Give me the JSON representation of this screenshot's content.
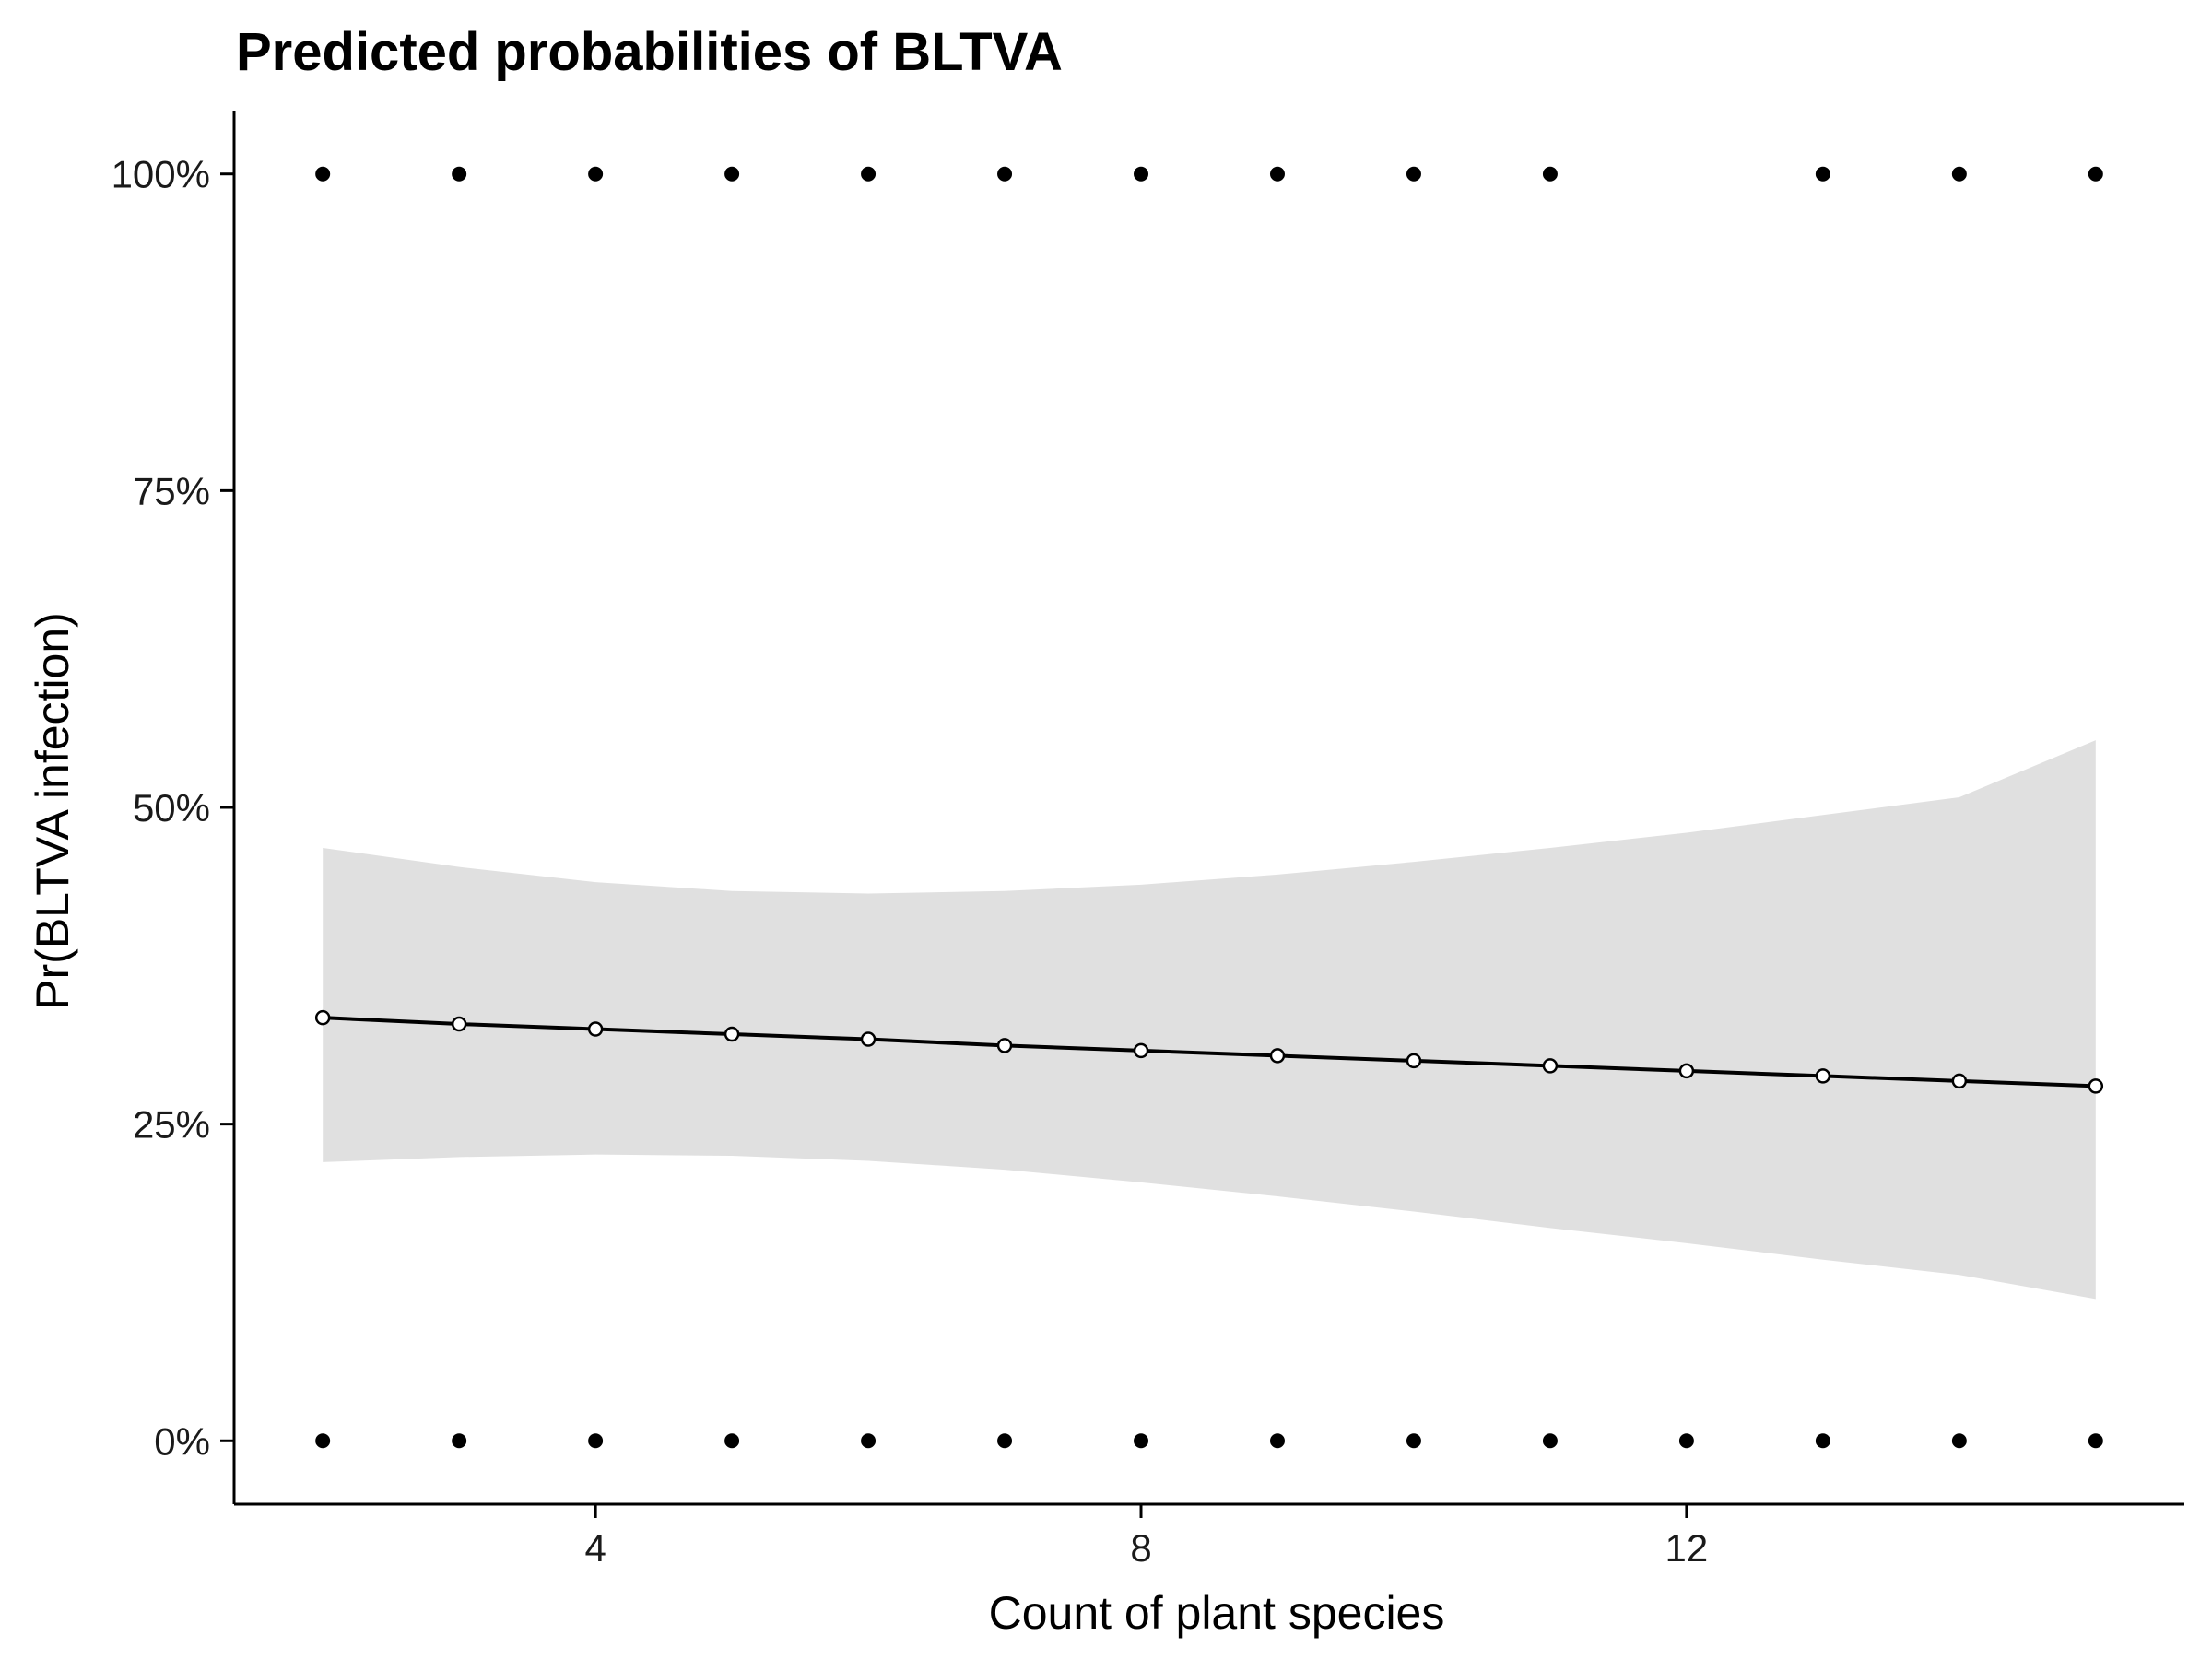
{
  "chart_data": {
    "type": "line",
    "title": "Predicted probabilities of BLTVA",
    "xlabel": "Count of plant species",
    "ylabel": "Pr(BLTVA infection)",
    "xlim": [
      1.35,
      15.65
    ],
    "ylim": [
      -0.05,
      1.05
    ],
    "x_ticks": [
      4,
      8,
      12
    ],
    "x_tick_labels": [
      "4",
      "8",
      "12"
    ],
    "y_ticks": [
      0,
      0.25,
      0.5,
      0.75,
      1.0
    ],
    "y_tick_labels": [
      "0%",
      "25%",
      "50%",
      "75%",
      "100%"
    ],
    "grid": false,
    "legend": "none",
    "fit": {
      "x": [
        2,
        3,
        4,
        5,
        6,
        7,
        8,
        9,
        10,
        11,
        12,
        13,
        14,
        15
      ],
      "y": [
        0.334,
        0.329,
        0.325,
        0.321,
        0.317,
        0.312,
        0.308,
        0.304,
        0.3,
        0.296,
        0.292,
        0.288,
        0.284,
        0.28
      ],
      "ci_lower": [
        0.22,
        0.224,
        0.226,
        0.225,
        0.221,
        0.214,
        0.204,
        0.193,
        0.181,
        0.168,
        0.156,
        0.143,
        0.131,
        0.112
      ],
      "ci_upper": [
        0.468,
        0.453,
        0.441,
        0.434,
        0.432,
        0.434,
        0.439,
        0.447,
        0.457,
        0.468,
        0.48,
        0.494,
        0.508,
        0.553
      ]
    },
    "observed": {
      "infected_x": [
        2,
        3,
        4,
        5,
        6,
        7,
        8,
        9,
        10,
        11,
        13,
        14,
        15
      ],
      "infected_y": 1,
      "not_infected_x": [
        2,
        3,
        4,
        5,
        6,
        7,
        8,
        9,
        10,
        11,
        12,
        13,
        14,
        15
      ],
      "not_infected_y": 0
    },
    "colors": {
      "band": "#e0e0e0",
      "line": "#000000",
      "points": "#000000"
    }
  }
}
